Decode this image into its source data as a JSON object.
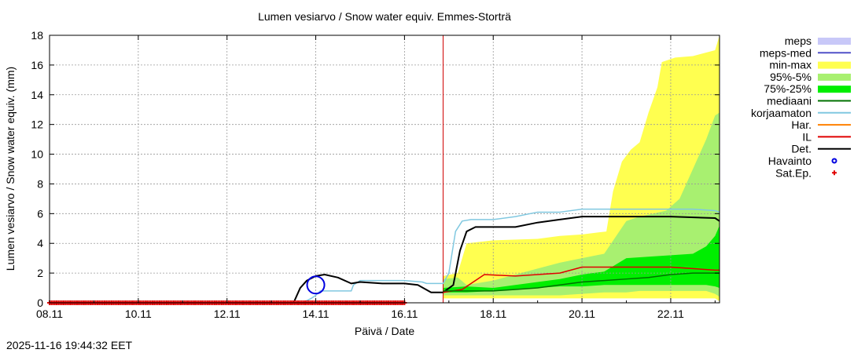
{
  "chart_data": {
    "type": "area",
    "title": "Lumen vesiarvo / Snow water equiv.  Emmes-Storträ",
    "xlabel": "Päivä / Date",
    "ylabel": "Lumen vesiarvo / Snow water equiv. (mm)",
    "timestamp": "2025-11-16 19:44:32 EET",
    "xlim": [
      0,
      15.1
    ],
    "ylim": [
      0,
      18
    ],
    "grid": true,
    "x_ticks": [
      {
        "x": 0,
        "label": "08.11"
      },
      {
        "x": 2,
        "label": "10.11"
      },
      {
        "x": 4,
        "label": "12.11"
      },
      {
        "x": 6,
        "label": "14.11"
      },
      {
        "x": 8,
        "label": "16.11"
      },
      {
        "x": 10,
        "label": "18.11"
      },
      {
        "x": 12,
        "label": "20.11"
      },
      {
        "x": 14,
        "label": "22.11"
      }
    ],
    "y_ticks": [
      0,
      2,
      4,
      6,
      8,
      10,
      12,
      14,
      16,
      18
    ],
    "forecast_start_x": 8.87,
    "legend": [
      {
        "label": "meps",
        "kind": "box",
        "color": "#c8c8f8"
      },
      {
        "label": "meps-med",
        "kind": "line",
        "color": "#5050c8"
      },
      {
        "label": "min-max",
        "kind": "box",
        "color": "#ffff50"
      },
      {
        "label": "95%-5%",
        "kind": "box",
        "color": "#a8f070"
      },
      {
        "label": "75%-25%",
        "kind": "box",
        "color": "#00ee00"
      },
      {
        "label": "mediaani",
        "kind": "line",
        "color": "#007000"
      },
      {
        "label": "korjaamaton",
        "kind": "line",
        "color": "#80c8e0"
      },
      {
        "label": "Har.",
        "kind": "line",
        "color": "#ff8000"
      },
      {
        "label": "IL",
        "kind": "line",
        "color": "#e00000"
      },
      {
        "label": "Det.",
        "kind": "line",
        "color": "#000000"
      },
      {
        "label": "Havainto",
        "kind": "circle",
        "color": "#0000e0"
      },
      {
        "label": "Sat.Ep.",
        "kind": "plus",
        "color": "#e00000"
      }
    ],
    "bands": [
      {
        "name": "min-max",
        "color": "#ffff50",
        "x": [
          8.87,
          9.2,
          9.4,
          10,
          11,
          11.5,
          12,
          12.55,
          12.7,
          12.9,
          13.1,
          13.3,
          13.5,
          13.7,
          13.8,
          14.1,
          14.5,
          15.0,
          15.1
        ],
        "upper": [
          1.8,
          2.0,
          4.0,
          4.2,
          4.3,
          4.5,
          4.6,
          4.8,
          7.5,
          9.5,
          10.3,
          10.8,
          12.8,
          14.5,
          16.2,
          16.5,
          16.6,
          17.0,
          18.0
        ],
        "lower": [
          0.3,
          0.3,
          0.3,
          0.3,
          0.3,
          0.3,
          0.3,
          0.3,
          0.3,
          0.3,
          0.3,
          0.3,
          0.3,
          0.3,
          0.3,
          0.3,
          0.3,
          0.3,
          0.1
        ]
      },
      {
        "name": "95%-5%",
        "color": "#a8f070",
        "x": [
          8.87,
          9.2,
          9.4,
          10,
          11,
          11.5,
          12,
          12.5,
          13.0,
          13.3,
          13.6,
          13.9,
          14.2,
          14.5,
          14.8,
          15.0,
          15.1
        ],
        "upper": [
          1.6,
          1.7,
          1.2,
          1.5,
          2.3,
          2.7,
          3.0,
          3.3,
          5.5,
          5.8,
          6.0,
          6.2,
          7.0,
          9.0,
          11.0,
          12.6,
          12.8
        ],
        "lower": [
          0.5,
          0.5,
          0.5,
          0.5,
          0.5,
          0.5,
          0.6,
          0.7,
          0.7,
          0.8,
          0.8,
          0.8,
          0.8,
          0.8,
          0.8,
          0.6,
          0.4
        ]
      },
      {
        "name": "75%-25%",
        "color": "#00ee00",
        "x": [
          8.87,
          9.4,
          10,
          10.5,
          11,
          11.5,
          12,
          12.5,
          13.0,
          13.5,
          14.0,
          14.5,
          14.8,
          15.0,
          15.1
        ],
        "upper": [
          1.0,
          1.1,
          1.0,
          1.2,
          1.4,
          1.6,
          1.9,
          2.1,
          3.0,
          3.1,
          3.2,
          3.3,
          3.8,
          4.5,
          5.2
        ],
        "lower": [
          0.7,
          0.7,
          0.8,
          0.9,
          1.0,
          1.1,
          1.1,
          1.2,
          1.2,
          1.2,
          1.2,
          1.2,
          1.2,
          1.1,
          1.0
        ]
      }
    ],
    "series": [
      {
        "name": "korjaamaton",
        "color": "#80c8e0",
        "width": 1.5,
        "x": [
          0,
          5.7,
          5.9,
          6.0,
          6.1,
          6.8,
          6.85,
          6.95,
          7.0,
          8.0,
          8.4,
          8.5,
          8.87,
          9.0,
          9.15,
          9.3,
          9.5,
          10.0,
          10.5,
          11.0,
          11.5,
          12.0,
          12.5,
          13.0,
          14.0,
          14.5,
          15.0,
          15.1
        ],
        "y": [
          0,
          0,
          0.3,
          0.5,
          0.8,
          0.8,
          1.2,
          1.4,
          1.5,
          1.5,
          1.4,
          1.3,
          1.3,
          2.0,
          4.8,
          5.5,
          5.6,
          5.6,
          5.8,
          6.1,
          6.1,
          6.3,
          6.3,
          6.3,
          6.3,
          6.3,
          6.2,
          6.1
        ]
      },
      {
        "name": "Det.",
        "color": "#000000",
        "width": 2,
        "x": [
          0,
          5.5,
          5.65,
          5.8,
          6.0,
          6.2,
          6.5,
          6.8,
          7.0,
          7.5,
          8.0,
          8.3,
          8.6,
          8.87,
          9.1,
          9.25,
          9.4,
          9.6,
          10.0,
          10.5,
          11.0,
          11.5,
          12.0,
          13.0,
          14.0,
          15.0,
          15.1
        ],
        "y": [
          0,
          0,
          1.0,
          1.5,
          1.8,
          1.9,
          1.7,
          1.3,
          1.4,
          1.3,
          1.3,
          1.2,
          0.7,
          0.7,
          1.2,
          3.5,
          4.8,
          5.1,
          5.1,
          5.1,
          5.4,
          5.6,
          5.8,
          5.8,
          5.8,
          5.7,
          5.5
        ]
      },
      {
        "name": "IL",
        "color": "#e00000",
        "width": 1.5,
        "x": [
          8.87,
          9.3,
          9.5,
          9.8,
          10.5,
          11.0,
          11.5,
          12.0,
          13.0,
          14.0,
          15.0,
          15.1
        ],
        "y": [
          0.7,
          0.9,
          1.3,
          1.9,
          1.8,
          1.9,
          2.0,
          2.4,
          2.4,
          2.4,
          2.2,
          2.2
        ]
      },
      {
        "name": "mediaani",
        "color": "#007000",
        "width": 1.5,
        "x": [
          8.87,
          9.5,
          10.0,
          10.5,
          11.0,
          11.5,
          12.0,
          12.5,
          13.0,
          13.5,
          14.0,
          14.5,
          15.0,
          15.1
        ],
        "y": [
          0.8,
          0.8,
          0.8,
          0.9,
          1.0,
          1.2,
          1.4,
          1.5,
          1.6,
          1.7,
          1.9,
          2.0,
          2.0,
          2.0
        ]
      }
    ],
    "observations": [
      {
        "name": "Havainto",
        "x": 6.0,
        "y": 1.2
      }
    ],
    "sat_ep_range": [
      0,
      8.0
    ]
  }
}
